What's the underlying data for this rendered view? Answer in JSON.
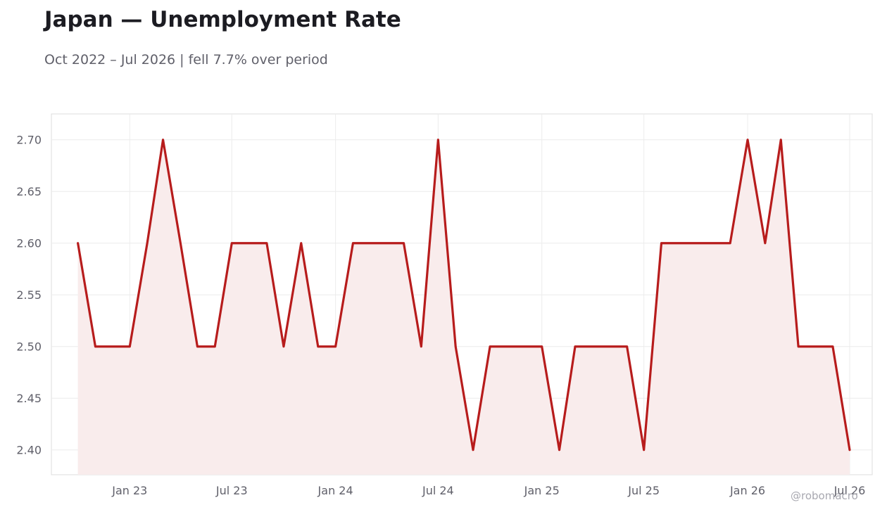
{
  "title": "Japan — Unemployment Rate",
  "subtitle": "Oct 2022 – Jul 2026 | fell 7.7% over period",
  "credit": "@robomacro",
  "colors": {
    "line": "#b71c1c",
    "fill": "#f9ecec",
    "grid": "#ececec",
    "axis_frame": "#dddddd",
    "text": "#60606a"
  },
  "chart_data": {
    "type": "area",
    "title": "Japan — Unemployment Rate",
    "subtitle": "Oct 2022 – Jul 2026 | fell 7.7% over period",
    "xlabel": "",
    "ylabel": "",
    "grid": true,
    "legend": "none",
    "x_ticks": [
      "Jan 23",
      "Jul 23",
      "Jan 24",
      "Jul 24",
      "Jan 25",
      "Jul 25",
      "Jan 26",
      "Jul 26"
    ],
    "y_ticks": [
      "2.40",
      "2.45",
      "2.50",
      "2.55",
      "2.60",
      "2.65",
      "2.70"
    ],
    "xlim": [
      "2022-08-15",
      "2026-08-10"
    ],
    "ylim": [
      2.376,
      2.725
    ],
    "x": [
      "2022-10",
      "2022-11",
      "2022-12",
      "2023-01",
      "2023-02",
      "2023-03",
      "2023-04",
      "2023-05",
      "2023-06",
      "2023-07",
      "2023-08",
      "2023-09",
      "2023-10",
      "2023-11",
      "2023-12",
      "2024-01",
      "2024-02",
      "2024-03",
      "2024-04",
      "2024-05",
      "2024-06",
      "2024-07",
      "2024-08",
      "2024-09",
      "2024-10",
      "2024-11",
      "2024-12",
      "2025-01",
      "2025-02",
      "2025-03",
      "2025-04",
      "2025-05",
      "2025-06",
      "2025-07",
      "2025-08",
      "2025-09",
      "2025-10",
      "2025-11",
      "2025-12",
      "2026-01",
      "2026-02",
      "2026-03",
      "2026-04",
      "2026-05",
      "2026-06",
      "2026-07"
    ],
    "series": [
      {
        "values": [
          2.6,
          2.5,
          2.5,
          2.5,
          2.6,
          2.7,
          2.6,
          2.5,
          2.5,
          2.6,
          2.6,
          2.6,
          2.5,
          2.6,
          2.5,
          2.5,
          2.6,
          2.6,
          2.6,
          2.6,
          2.5,
          2.7,
          2.5,
          2.4,
          2.5,
          2.5,
          2.5,
          2.5,
          2.4,
          2.5,
          2.5,
          2.5,
          2.5,
          2.4,
          2.6,
          2.6,
          2.6,
          2.6,
          2.6,
          2.7,
          2.6,
          2.7,
          2.5,
          2.5,
          2.5,
          2.4
        ]
      }
    ]
  }
}
